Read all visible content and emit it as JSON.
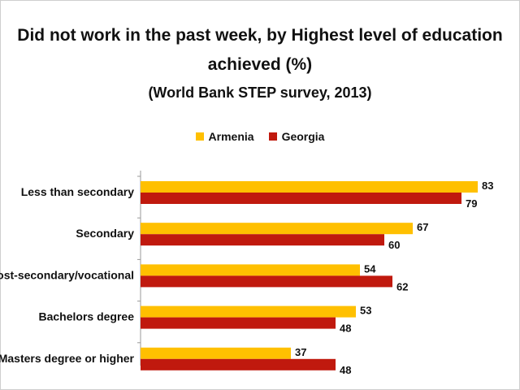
{
  "chart_data": {
    "type": "bar",
    "orientation": "horizontal",
    "title_line1": "Did not work in the past week, by Highest level of education",
    "title_line2": "achieved (%)",
    "subtitle": "(World Bank STEP survey, 2013)",
    "categories": [
      "Less than secondary",
      "Secondary",
      "Post-secondary/vocational",
      "Bachelors degree",
      "Masters degree or higher"
    ],
    "series": [
      {
        "name": "Armenia",
        "color": "#FFC000",
        "values": [
          83,
          67,
          54,
          53,
          37
        ]
      },
      {
        "name": "Georgia",
        "color": "#C0190E",
        "values": [
          79,
          60,
          62,
          48,
          48
        ]
      }
    ],
    "xlim": [
      0,
      90
    ],
    "legend_position": "top",
    "grid": false
  }
}
